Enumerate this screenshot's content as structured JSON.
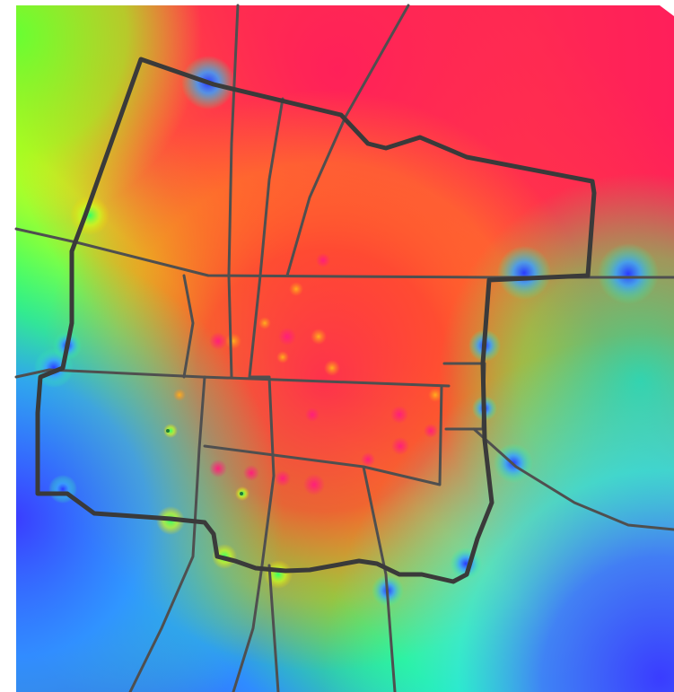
{
  "map": {
    "type": "heatmap-overlay",
    "colors": {
      "background": "#ffffff",
      "road": "#4f4f4f",
      "boundary": "#3a3a3a",
      "scale_high": "#ff1f5a",
      "scale_mid_high": "#ff6a1e",
      "scale_mid": "#ffd400",
      "scale_mid_low": "#66ff33",
      "scale_low_cyan": "#00e0c0",
      "scale_low": "#3a4dff"
    },
    "legend": null
  }
}
